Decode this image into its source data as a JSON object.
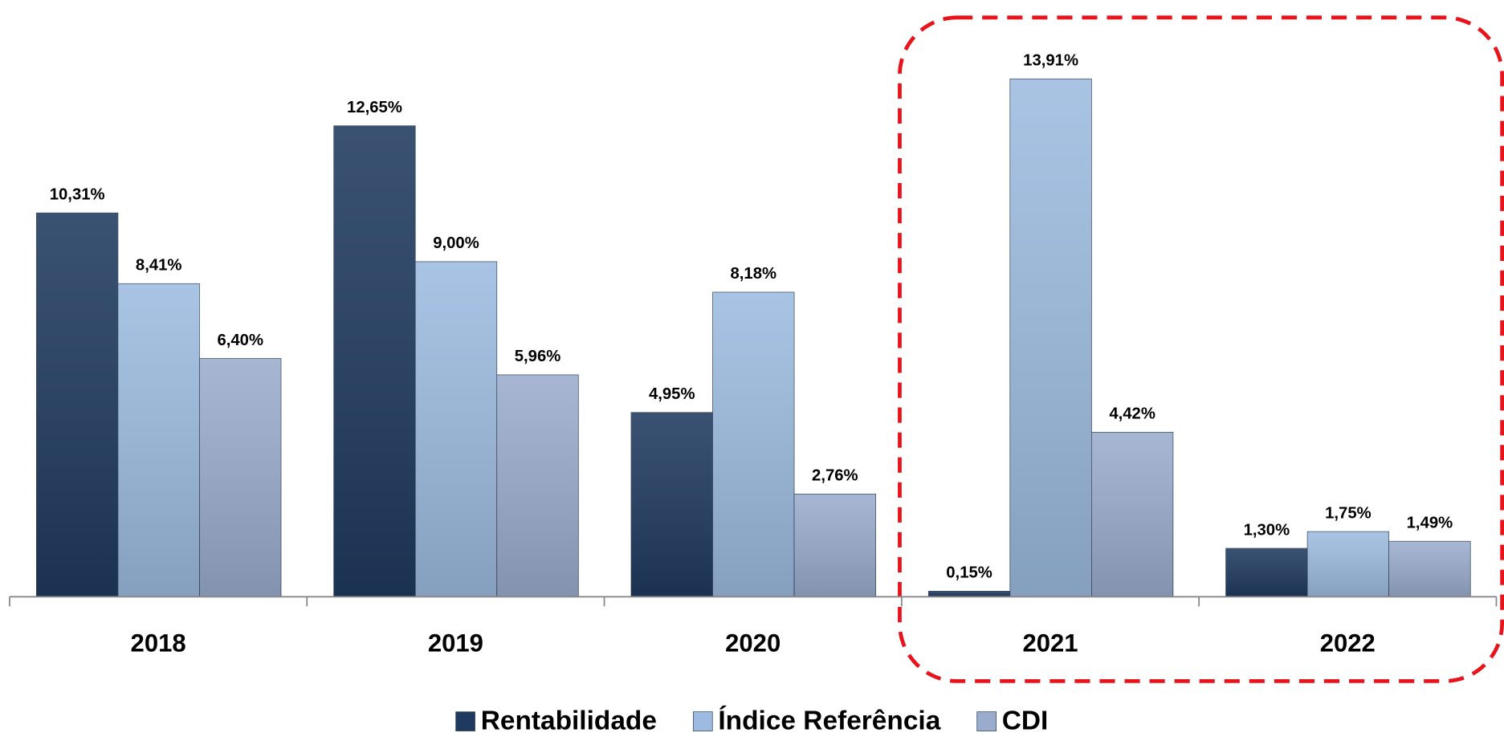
{
  "chart_data": {
    "type": "bar",
    "categories": [
      "2018",
      "2019",
      "2020",
      "2021",
      "2022"
    ],
    "series": [
      {
        "name": "Rentabilidade",
        "color": "#1f3a5f",
        "values": [
          10.31,
          12.65,
          4.95,
          0.15,
          1.3
        ],
        "value_labels": [
          "10,31%",
          "12,65%",
          "4,95%",
          "0,15%",
          "1,30%"
        ]
      },
      {
        "name": "Índice Referência",
        "color": "#9dbbe0",
        "values": [
          8.41,
          9.0,
          8.18,
          13.91,
          1.75
        ],
        "value_labels": [
          "8,41%",
          "9,00%",
          "8,18%",
          "13,91%",
          "1,75%"
        ]
      },
      {
        "name": "CDI",
        "color": "#9aaccd",
        "values": [
          6.4,
          5.96,
          2.76,
          4.42,
          1.49
        ],
        "value_labels": [
          "6,40%",
          "5,96%",
          "2,76%",
          "4,42%",
          "1,49%"
        ]
      }
    ],
    "legend": "bottom"
  }
}
